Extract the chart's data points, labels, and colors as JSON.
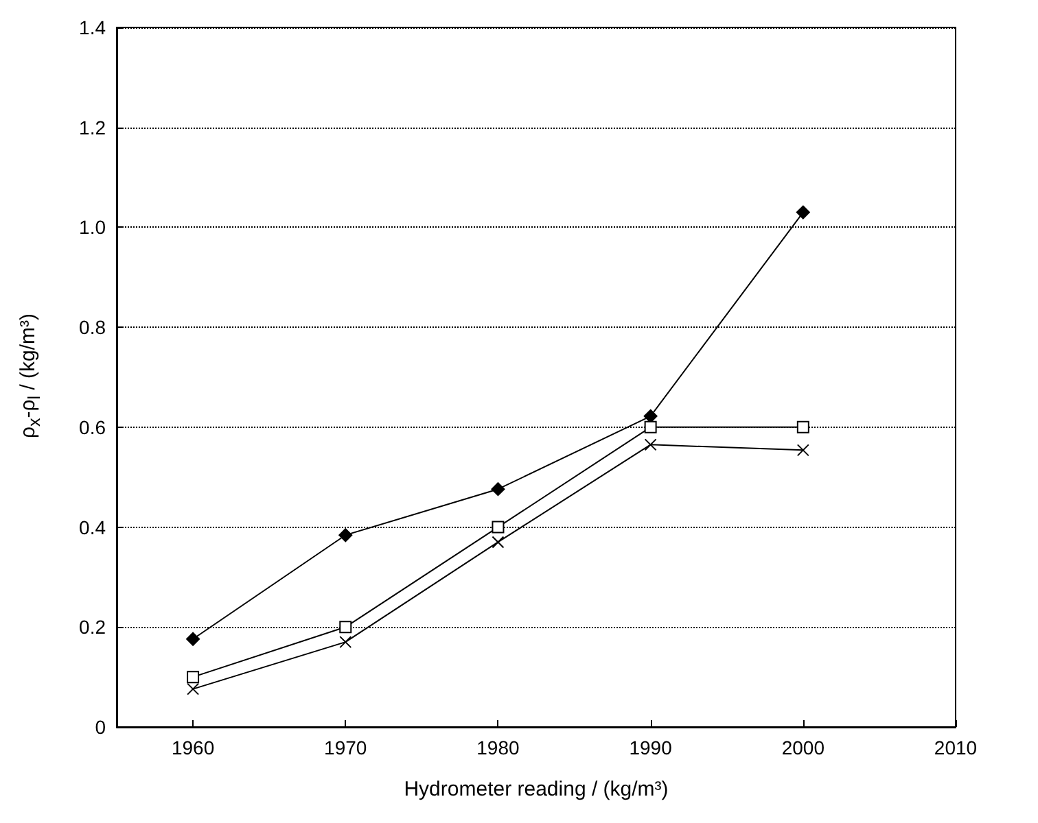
{
  "chart_data": {
    "type": "line",
    "xlabel": "Hydrometer reading / (kg/m³)",
    "ylabel": "ρ$_{x}$-ρ$_{l}$ / (kg/m³)",
    "xlim": [
      1955,
      2010
    ],
    "xticks": [
      1960,
      1970,
      1980,
      1990,
      2000,
      2010
    ],
    "ylim": [
      0,
      1.4
    ],
    "yticks": [
      0,
      0.2,
      0.4,
      0.6,
      0.8,
      {
        "value": 1,
        "label": "1.0"
      },
      1.2,
      1.4
    ],
    "grid": "y",
    "series": [
      {
        "color": "#000000",
        "marker": "diamond",
        "x": [
          1960,
          1970,
          1980,
          1990,
          2000
        ],
        "values": [
          0.176,
          0.384,
          0.476,
          0.622,
          1.03
        ]
      },
      {
        "color": "#000000",
        "marker": "square",
        "x": [
          1960,
          1970,
          1980,
          1990,
          2000
        ],
        "values": [
          0.1,
          0.2,
          0.4,
          0.6,
          0.6
        ]
      },
      {
        "color": "#000000",
        "marker": "cross",
        "x": [
          1960,
          1970,
          1980,
          1990,
          2000
        ],
        "values": [
          0.076,
          0.17,
          0.37,
          0.565,
          0.554
        ]
      }
    ]
  }
}
